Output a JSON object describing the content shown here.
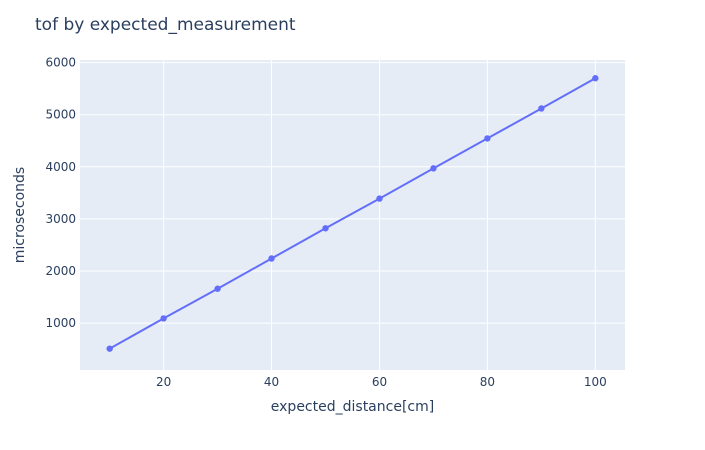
{
  "chart_data": {
    "type": "line",
    "title": "tof by expected_measurement",
    "xlabel": "expected_distance[cm]",
    "ylabel": "microseconds",
    "xlim": [
      4.5,
      105.5
    ],
    "ylim": [
      100,
      6050
    ],
    "x_ticks": [
      20,
      40,
      60,
      80,
      100
    ],
    "y_ticks": [
      1000,
      2000,
      3000,
      4000,
      5000,
      6000
    ],
    "grid": true,
    "series": [
      {
        "x": [
          10,
          20,
          30,
          40,
          50,
          60,
          70,
          80,
          90,
          100
        ],
        "y": [
          510,
          1090,
          1660,
          2240,
          2820,
          3390,
          3970,
          4545,
          5120,
          5700
        ],
        "color": "#636efa"
      }
    ],
    "plot_bgcolor": "#e5ecf6"
  }
}
